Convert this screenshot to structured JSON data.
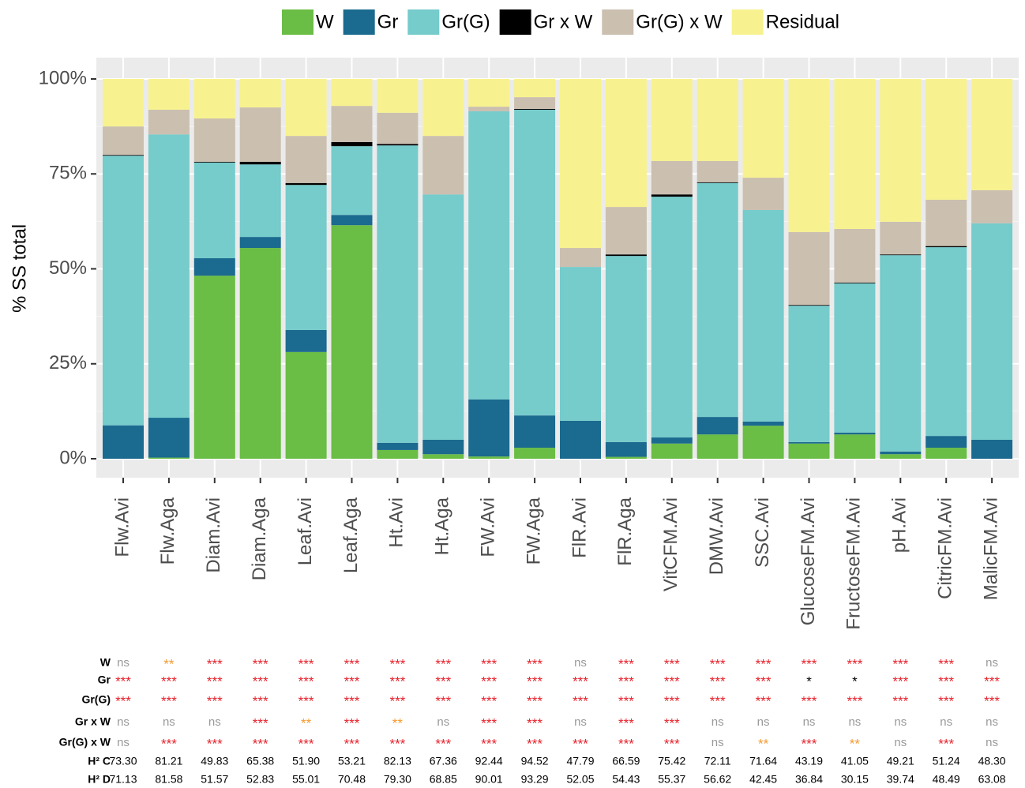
{
  "chart_data": {
    "type": "stacked_bar",
    "y_label": "% SS total",
    "categories": [
      "Flw.Avi",
      "Flw.Aga",
      "Diam.Avi",
      "Diam.Aga",
      "Leaf.Avi",
      "Leaf.Aga",
      "Ht.Avi",
      "Ht.Aga",
      "FW.Avi",
      "FW.Aga",
      "FlR.Avi",
      "FlR.Aga",
      "VitCFM.Avi",
      "DMW.Avi",
      "SSC.Avi",
      "GlucoseFM.Avi",
      "FructoseFM.Avi",
      "pH.Avi",
      "CitricFM.Avi",
      "MalicFM.Avi"
    ],
    "series": [
      {
        "name": "W",
        "color": "#6abd45",
        "values": [
          0,
          0.3,
          48.2,
          55.5,
          28.1,
          61.5,
          2.3,
          1.2,
          0.6,
          2.9,
          0,
          0.5,
          4.0,
          6.4,
          8.7,
          4.0,
          6.4,
          1.2,
          2.9,
          0
        ]
      },
      {
        "name": "Gr",
        "color": "#1b6a8f",
        "values": [
          8.8,
          10.5,
          4.6,
          2.9,
          5.8,
          2.7,
          1.9,
          3.8,
          15.0,
          8.5,
          10.0,
          3.9,
          1.6,
          4.6,
          1.1,
          0.4,
          0.5,
          0.7,
          3.1,
          5.0
        ]
      },
      {
        "name": "Gr(G)",
        "color": "#76cbcb",
        "values": [
          71.0,
          74.6,
          25.2,
          19.1,
          38.2,
          18.1,
          78.3,
          64.6,
          75.9,
          80.5,
          40.5,
          49.0,
          63.4,
          61.6,
          55.7,
          35.9,
          39.3,
          51.7,
          49.7,
          57.0
        ]
      },
      {
        "name": "Gr x W",
        "color": "#000000",
        "values": [
          0.2,
          0,
          0.2,
          0.7,
          0.5,
          1.1,
          0.4,
          0,
          0,
          0.2,
          0,
          0.4,
          0.6,
          0.2,
          0,
          0.2,
          0.2,
          0.2,
          0.3,
          0
        ]
      },
      {
        "name": "Gr(G) x W",
        "color": "#cbbfb0",
        "values": [
          7.5,
          6.5,
          11.4,
          14.3,
          12.4,
          9.5,
          8.2,
          15.4,
          1.2,
          3.1,
          5.0,
          12.5,
          8.8,
          5.6,
          8.5,
          19.2,
          14.1,
          8.6,
          12.2,
          8.7
        ]
      },
      {
        "name": "Residual",
        "color": "#f7f28f",
        "values": [
          12.5,
          8.1,
          10.4,
          7.5,
          15.0,
          7.1,
          8.9,
          15.0,
          7.3,
          4.8,
          44.5,
          33.7,
          21.6,
          21.6,
          26.0,
          40.3,
          39.5,
          37.6,
          31.8,
          29.3
        ]
      }
    ],
    "ylim": [
      0,
      100
    ],
    "yticks": [
      {
        "value": 0,
        "label": "0%"
      },
      {
        "value": 25,
        "label": "25%"
      },
      {
        "value": 50,
        "label": "50%"
      },
      {
        "value": 75,
        "label": "75%"
      },
      {
        "value": 100,
        "label": "100%"
      }
    ],
    "grid": true,
    "legend": "top"
  },
  "table": {
    "rows": [
      {
        "label": "W",
        "cells": [
          "ns",
          "**",
          "***",
          "***",
          "***",
          "***",
          "***",
          "***",
          "***",
          "***",
          "ns",
          "***",
          "***",
          "***",
          "***",
          "***",
          "***",
          "***",
          "***",
          "ns"
        ]
      },
      {
        "label": "Gr",
        "cells": [
          "***",
          "***",
          "***",
          "***",
          "***",
          "***",
          "***",
          "***",
          "***",
          "***",
          "***",
          "***",
          "***",
          "***",
          "***",
          "*",
          "*",
          "***",
          "***",
          "***"
        ]
      },
      {
        "label": "Gr(G)",
        "cells": [
          "***",
          "***",
          "***",
          "***",
          "***",
          "***",
          "***",
          "***",
          "***",
          "***",
          "***",
          "***",
          "***",
          "***",
          "***",
          "***",
          "***",
          "***",
          "***",
          "***"
        ]
      },
      {
        "label": "Gr x W",
        "cells": [
          "ns",
          "ns",
          "ns",
          "***",
          "**",
          "***",
          "**",
          "ns",
          "***",
          "***",
          "ns",
          "***",
          "***",
          "ns",
          "ns",
          "ns",
          "ns",
          "ns",
          "ns",
          "ns"
        ]
      },
      {
        "label": "Gr(G) x W",
        "cells": [
          "ns",
          "***",
          "***",
          "***",
          "***",
          "***",
          "***",
          "***",
          "***",
          "***",
          "***",
          "***",
          "***",
          "ns",
          "**",
          "***",
          "**",
          "ns",
          "***",
          "ns"
        ]
      },
      {
        "label": "H² C",
        "cells": [
          "73.30",
          "81.21",
          "49.83",
          "65.38",
          "51.90",
          "53.21",
          "82.13",
          "67.36",
          "92.44",
          "94.52",
          "47.79",
          "66.59",
          "75.42",
          "72.11",
          "71.64",
          "43.19",
          "41.05",
          "49.21",
          "51.24",
          "48.30"
        ]
      },
      {
        "label": "H² D",
        "cells": [
          "71.13",
          "81.58",
          "51.57",
          "52.83",
          "55.01",
          "70.48",
          "79.30",
          "68.85",
          "90.01",
          "93.29",
          "52.05",
          "54.43",
          "55.37",
          "56.62",
          "42.45",
          "36.84",
          "30.15",
          "39.74",
          "48.49",
          "63.08"
        ]
      }
    ]
  }
}
